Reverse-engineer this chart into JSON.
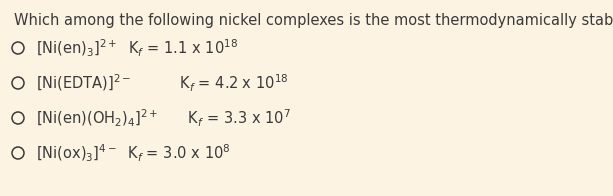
{
  "background_color": "#fdf3e3",
  "title": "Which among the following nickel complexes is the most thermodynamically stable?",
  "title_color": "#3a3a3a",
  "title_fontsize": 10.5,
  "text_color": "#3a3a3a",
  "option_fontsize": 10.5,
  "options": [
    {
      "label": "[Ni(en)$_3$]$^{2+}$",
      "kf_text": "  K$_f$ = 1.1 x 10$^{18}$"
    },
    {
      "label": "[Ni(EDTA)]$^{2-}$",
      "kf_text": "          K$_f$ = 4.2 x 10$^{18}$"
    },
    {
      "label": "[Ni(en)(OH$_2$)$_4$]$^{2+}$",
      "kf_text": "      K$_f$ = 3.3 x 10$^{7}$"
    },
    {
      "label": "[Ni(ox)$_3$]$^{4−}$",
      "kf_text": "  K$_f$ = 3.0 x 10$^{8}$"
    }
  ]
}
